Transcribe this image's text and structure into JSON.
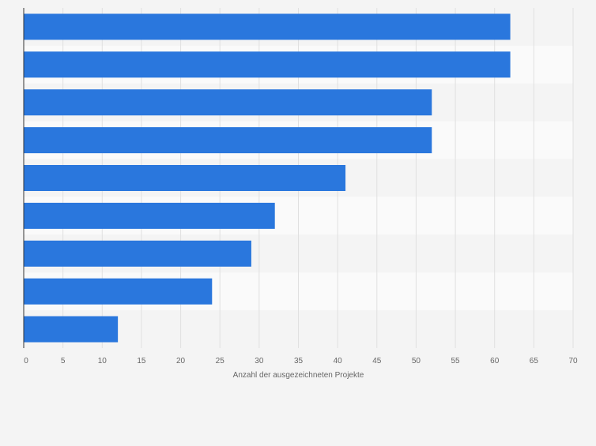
{
  "chart_data": {
    "type": "bar",
    "orientation": "horizontal",
    "categories": [
      "",
      "",
      "",
      "",
      "",
      "",
      "",
      "",
      ""
    ],
    "values": [
      62,
      62,
      52,
      52,
      41,
      32,
      29,
      24,
      12
    ],
    "title": "",
    "xlabel": "Anzahl der ausgezeichneten Projekte",
    "ylabel": "",
    "xlim": [
      0,
      70
    ],
    "xticks": [
      0,
      5,
      10,
      15,
      20,
      25,
      30,
      35,
      40,
      45,
      50,
      55,
      60,
      65,
      70
    ],
    "grid": true,
    "legend": "none",
    "colors": {
      "bar": "#2a77dd",
      "band_light": "#fafafa",
      "band_dark": "#f4f4f4",
      "grid": "#e0e0e0",
      "axis": "#333333",
      "tick_text": "#666666",
      "background": "#f4f4f4"
    }
  }
}
